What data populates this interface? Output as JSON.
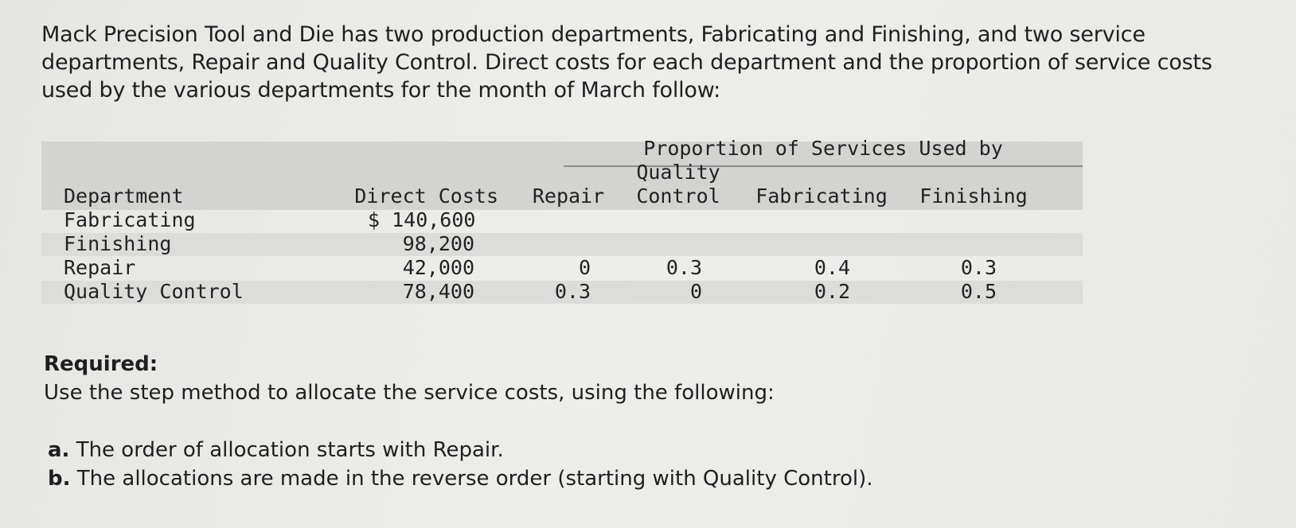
{
  "intro": "Mack Precision Tool and Die has two production departments, Fabricating and Finishing, and two service departments, Repair and Quality Control. Direct costs for each department and the proportion of service costs used by the various departments for the month of March follow:",
  "table": {
    "group_header": "Proportion of Services Used by",
    "headers": {
      "department": "Department",
      "direct_costs": "Direct Costs",
      "repair": "Repair",
      "qc_line1": "Quality",
      "qc_line2": "Control",
      "fabricating": "Fabricating",
      "finishing": "Finishing"
    },
    "rows": [
      {
        "department": "Fabricating",
        "direct_costs": "$ 140,600",
        "repair": "",
        "qc": "",
        "fabricating": "",
        "finishing": ""
      },
      {
        "department": "Finishing",
        "direct_costs": "98,200",
        "repair": "",
        "qc": "",
        "fabricating": "",
        "finishing": ""
      },
      {
        "department": "Repair",
        "direct_costs": "42,000",
        "repair": "0",
        "qc": "0.3",
        "fabricating": "0.4",
        "finishing": "0.3"
      },
      {
        "department": "Quality Control",
        "direct_costs": "78,400",
        "repair": "0.3",
        "qc": "0",
        "fabricating": "0.2",
        "finishing": "0.5"
      }
    ]
  },
  "required": {
    "label": "Required:",
    "text": "Use the step method to allocate the service costs, using the following:",
    "items": [
      {
        "marker": "a.",
        "text": "The order of allocation starts with Repair."
      },
      {
        "marker": "b.",
        "text": "The allocations are made in the reverse order (starting with Quality Control)."
      }
    ]
  }
}
